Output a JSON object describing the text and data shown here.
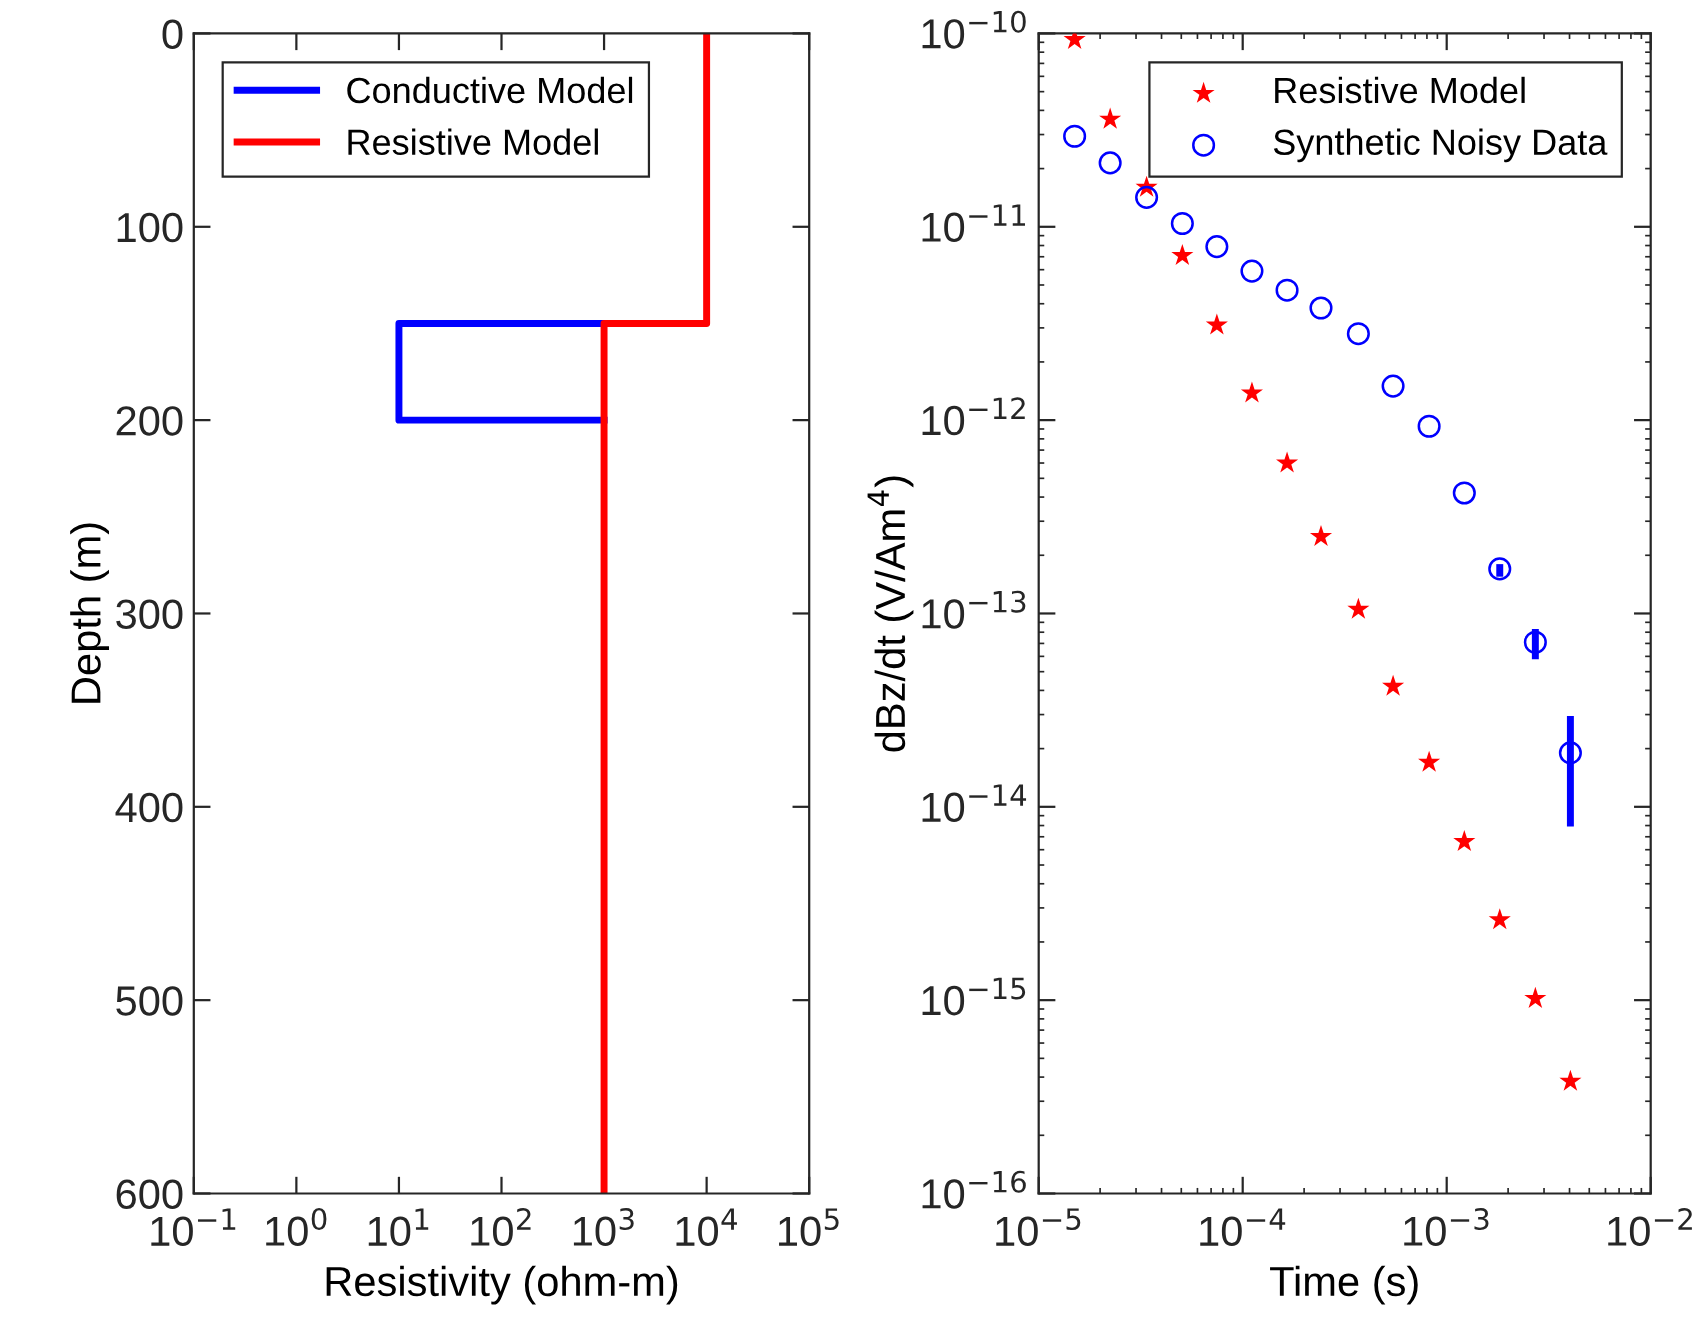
{
  "chart_data": [
    {
      "type": "line",
      "xlabel": "Resistivity (ohm-m)",
      "ylabel": "Depth (m)",
      "log": "x",
      "legend": "top left",
      "grid": false,
      "marker": "none",
      "line_style": "solid",
      "xlim": [
        0.1,
        100000
      ],
      "xticks": [
        {
          "value": 0.1,
          "label": "10$^{−1}$"
        },
        {
          "value": 1,
          "label": "10$^{0}$"
        },
        {
          "value": 10,
          "label": "10$^{1}$"
        },
        {
          "value": 100,
          "label": "10$^{2}$"
        },
        {
          "value": 1000,
          "label": "10$^{3}$"
        },
        {
          "value": 10000,
          "label": "10$^{4}$"
        },
        {
          "value": 100000,
          "label": "10$^{5}$"
        }
      ],
      "ylim": [
        600,
        0
      ],
      "yticks": [
        0,
        100,
        200,
        300,
        400,
        500,
        600
      ],
      "series": [
        {
          "name": "Conductive Model",
          "color": "#0000ff",
          "x": [
            1000,
            10,
            10,
            1000
          ],
          "values": [
            150,
            150,
            200,
            200
          ]
        },
        {
          "name": "Resistive Model",
          "color": "#ff0000",
          "x": [
            10000,
            10000,
            1000,
            1000
          ],
          "values": [
            0,
            150,
            150,
            600
          ]
        }
      ]
    },
    {
      "type": "scatter",
      "xlabel": "Time (s)",
      "ylabel": "dBz/dt (V/Am$^{4}$)",
      "log": "xy",
      "legend": "top right",
      "grid": false,
      "xlim": [
        1e-05,
        0.01
      ],
      "xticks": [
        {
          "value": 1e-05,
          "label": "10$^{−5}$"
        },
        {
          "value": 0.0001,
          "label": "10$^{−4}$"
        },
        {
          "value": 0.001,
          "label": "10$^{−3}$"
        },
        {
          "value": 0.01,
          "label": "10$^{−2}$"
        }
      ],
      "ylim": [
        1e-16,
        1e-10
      ],
      "yticks": [
        {
          "value": 1e-16,
          "label": "10$^{−16}$"
        },
        {
          "value": 1e-15,
          "label": "10$^{−15}$"
        },
        {
          "value": 1e-14,
          "label": "10$^{−14}$"
        },
        {
          "value": 1e-13,
          "label": "10$^{−13}$"
        },
        {
          "value": 1e-12,
          "label": "10$^{−12}$"
        },
        {
          "value": 1e-11,
          "label": "10$^{−11}$"
        },
        {
          "value": 1e-10,
          "label": "10$^{−10}$"
        }
      ],
      "x": [
        1.5e-05,
        2.24e-05,
        3.38e-05,
        5.06e-05,
        7.47e-05,
        0.000111,
        0.000165,
        0.000242,
        0.000369,
        0.000546,
        0.00082,
        0.00122,
        0.00182,
        0.00272,
        0.00404
      ],
      "series": [
        {
          "name": "Resistive Model",
          "color": "#ff0000",
          "marker": "star",
          "values": [
            9.3e-11,
            3.6e-11,
            1.6e-11,
            7.1e-12,
            3.1e-12,
            1.38e-12,
            6e-13,
            2.5e-13,
            1.05e-13,
            4.2e-14,
            1.7e-14,
            6.6e-15,
            2.6e-15,
            1.02e-15,
            3.8e-16
          ]
        },
        {
          "name": "Synthetic Noisy Data",
          "color": "#0000ff",
          "marker": "circle",
          "values": [
            2.94e-11,
            2.14e-11,
            1.42e-11,
            1.04e-11,
            7.9e-12,
            5.9e-12,
            4.7e-12,
            3.8e-12,
            2.8e-12,
            1.5e-12,
            9.3e-13,
            4.2e-13,
            1.7e-13,
            7.1e-14,
            1.9e-14
          ],
          "errors": [
            null,
            null,
            null,
            null,
            null,
            null,
            null,
            null,
            null,
            null,
            null,
            null,
            [
              1.55e-13,
              1.8e-13
            ],
            [
              5.8e-14,
              8.3e-14
            ],
            [
              7.9e-15,
              2.95e-14
            ]
          ]
        }
      ]
    }
  ]
}
